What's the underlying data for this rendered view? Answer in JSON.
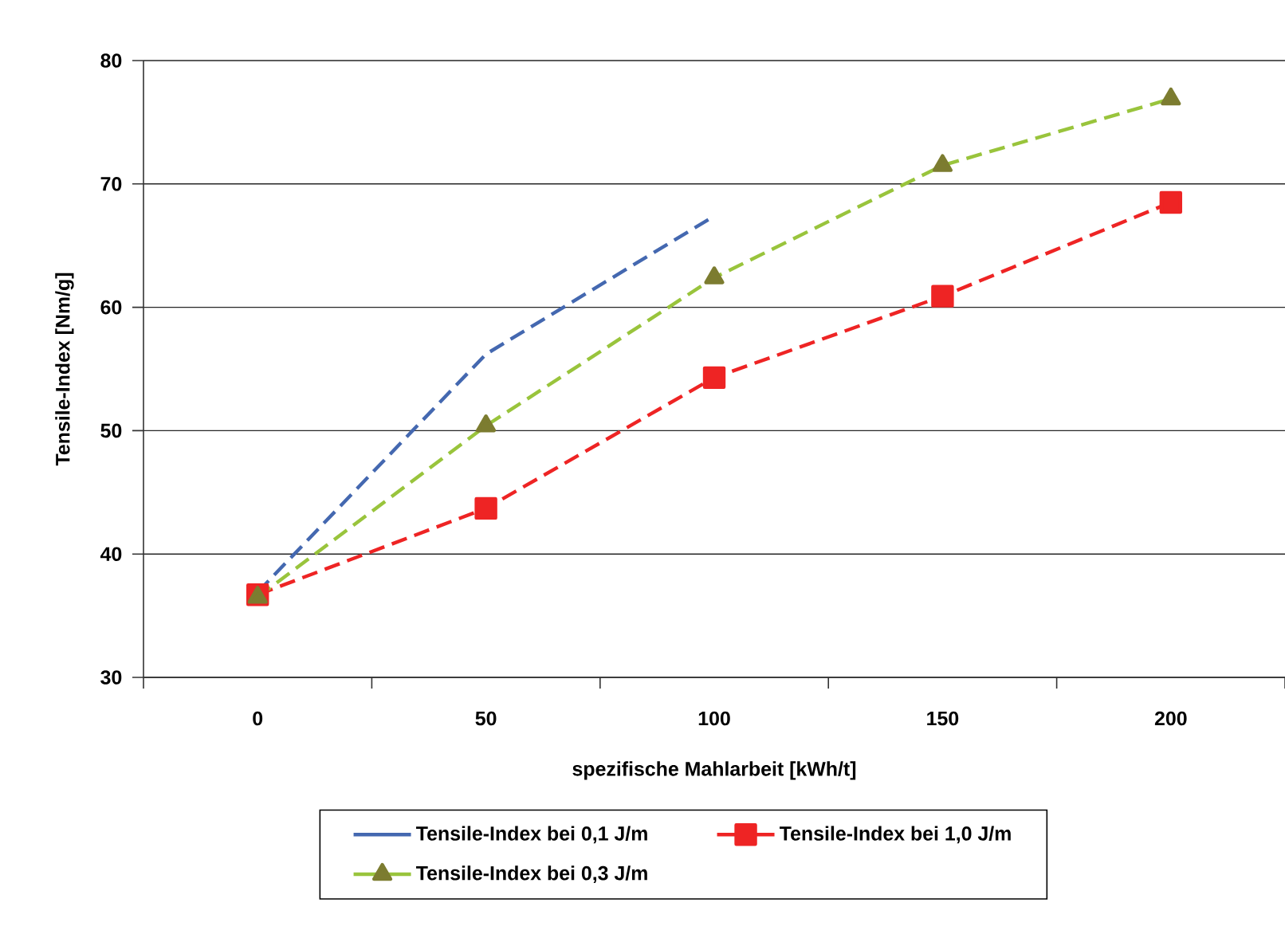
{
  "chart_data": {
    "type": "line",
    "categories": [
      "0",
      "50",
      "100",
      "150",
      "200"
    ],
    "xlabel": "spezifische Mahlarbeit [kWh/t]",
    "ylabel": "Tensile-Index [Nm/g]",
    "ylim": [
      30,
      80
    ],
    "yticks": [
      30,
      40,
      50,
      60,
      70,
      80
    ],
    "grid": "y",
    "legend": "bottom",
    "line_style": "dashed",
    "series": [
      {
        "name": "Tensile-Index bei 0,1 J/m",
        "color": "#4468b0",
        "marker": "none",
        "values": [
          36.9,
          56.2,
          67.4,
          null,
          null
        ]
      },
      {
        "name": "Tensile-Index bei 1,0 J/m",
        "color": "#ee2424",
        "marker": "square",
        "values": [
          36.7,
          43.7,
          54.3,
          60.9,
          68.5
        ]
      },
      {
        "name": "Tensile-Index bei 0,3 J/m",
        "color": "#99c43c",
        "marker": "triangle",
        "colors": [
          "#7c7c30",
          "#7c7c30",
          "#7c7c30",
          "#7c7c30",
          "#7c7c30"
        ],
        "values": [
          36.5,
          50.4,
          62.4,
          71.5,
          76.9
        ]
      }
    ]
  }
}
